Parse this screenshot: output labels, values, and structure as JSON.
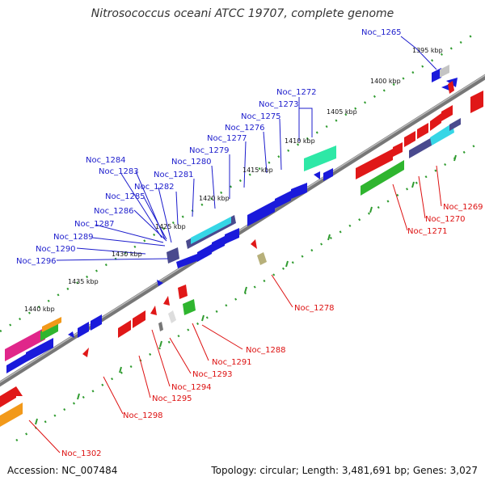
{
  "title": "Nitrosococcus oceani ATCC 19707, complete genome",
  "footer": {
    "accession": "Accession: NC_007484",
    "summary": "Topology: circular; Length: 3,481,691 bp; Genes: 3,027"
  },
  "scale_labels": [
    "1395 kbp",
    "1400 kbp",
    "1405 kbp",
    "1410 kbp",
    "1415 kbp",
    "1420 kbp",
    "1425 kbp",
    "1430 kbp",
    "1435 kbp",
    "1440 kbp"
  ],
  "top_labels": [
    "Noc_1265",
    "Noc_1272",
    "Noc_1273",
    "Noc_1275",
    "Noc_1276",
    "Noc_1277",
    "Noc_1279",
    "Noc_1280",
    "Noc_1281",
    "Noc_1282",
    "Noc_1283",
    "Noc_1284",
    "Noc_1285",
    "Noc_1286",
    "Noc_1287",
    "Noc_1289",
    "Noc_1290",
    "Noc_1296"
  ],
  "bottom_labels": [
    "Noc_1269",
    "Noc_1270",
    "Noc_1271",
    "Noc_1278",
    "Noc_1288",
    "Noc_1291",
    "Noc_1293",
    "Noc_1294",
    "Noc_1295",
    "Noc_1298",
    "Noc_1302"
  ],
  "colors": {
    "blue": "#1a1adb",
    "red": "#e01818",
    "green": "#2fb52f",
    "cyan": "#36d6e6",
    "teal": "#2ee8a6",
    "slate": "#4a4a8e",
    "magenta": "#e0268a",
    "orange": "#f2991a",
    "olive": "#b7b07a",
    "gray": "#9a9a9a",
    "backbone": "#777777",
    "tick": "#2f9b2f"
  }
}
